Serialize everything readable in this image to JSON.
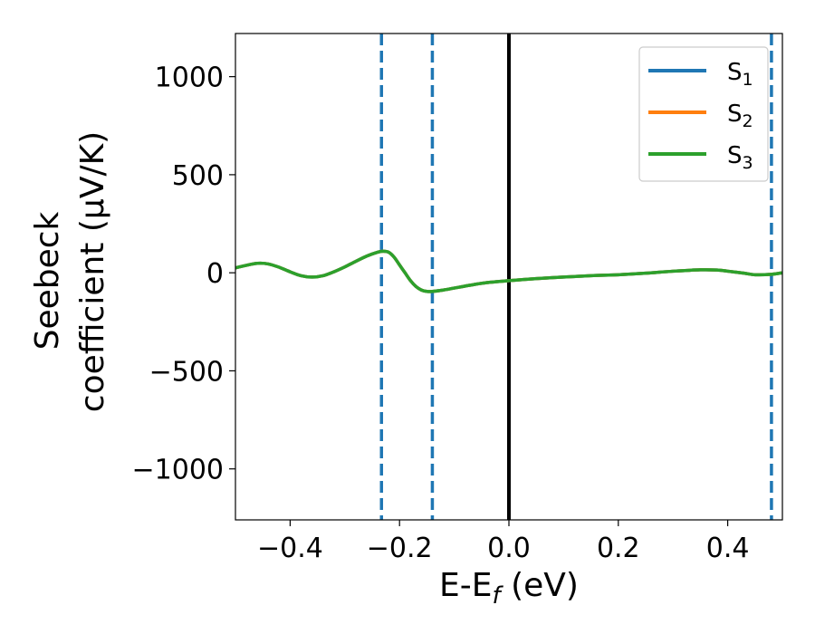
{
  "chart_data": {
    "type": "line",
    "xlabel": "E-E",
    "xlabel_sub": "f",
    "xlabel_unit": " (eV)",
    "ylabel_line1": "Seebeck",
    "ylabel_line2": "coefficient  (μV/K)",
    "xlim": [
      -0.5,
      0.5
    ],
    "ylim": [
      -1260,
      1220
    ],
    "xticks": [
      -0.4,
      -0.2,
      0.0,
      0.2,
      0.4
    ],
    "xtick_labels": [
      "−0.4",
      "−0.2",
      "0.0",
      "0.2",
      "0.4"
    ],
    "yticks": [
      1000,
      500,
      0,
      -500,
      -1000
    ],
    "ytick_labels": [
      "1000",
      "500",
      "0",
      "−500",
      "−1000"
    ],
    "grid": false,
    "legend_position": "top-right",
    "series": [
      {
        "name": "S",
        "name_sub": "1",
        "color": "#1f77b4",
        "x": [
          -0.5,
          -0.48,
          -0.46,
          -0.44,
          -0.42,
          -0.4,
          -0.38,
          -0.36,
          -0.34,
          -0.32,
          -0.3,
          -0.28,
          -0.26,
          -0.24,
          -0.23,
          -0.22,
          -0.21,
          -0.2,
          -0.19,
          -0.18,
          -0.17,
          -0.16,
          -0.15,
          -0.14,
          -0.12,
          -0.1,
          -0.08,
          -0.06,
          -0.04,
          -0.02,
          0.0,
          0.05,
          0.1,
          0.15,
          0.2,
          0.25,
          0.3,
          0.35,
          0.38,
          0.4,
          0.43,
          0.45,
          0.48,
          0.5
        ],
        "y": [
          25,
          38,
          48,
          45,
          28,
          5,
          -15,
          -22,
          -15,
          5,
          30,
          58,
          85,
          105,
          110,
          105,
          80,
          40,
          0,
          -40,
          -70,
          -88,
          -95,
          -95,
          -88,
          -78,
          -68,
          -58,
          -50,
          -45,
          -40,
          -30,
          -22,
          -15,
          -10,
          -2,
          8,
          15,
          14,
          8,
          -2,
          -10,
          -8,
          0
        ]
      },
      {
        "name": "S",
        "name_sub": "2",
        "color": "#ff7f0e",
        "x": [
          -0.5,
          -0.48,
          -0.46,
          -0.44,
          -0.42,
          -0.4,
          -0.38,
          -0.36,
          -0.34,
          -0.32,
          -0.3,
          -0.28,
          -0.26,
          -0.24,
          -0.23,
          -0.22,
          -0.21,
          -0.2,
          -0.19,
          -0.18,
          -0.17,
          -0.16,
          -0.15,
          -0.14,
          -0.12,
          -0.1,
          -0.08,
          -0.06,
          -0.04,
          -0.02,
          0.0,
          0.05,
          0.1,
          0.15,
          0.2,
          0.25,
          0.3,
          0.35,
          0.38,
          0.4,
          0.43,
          0.45,
          0.48,
          0.5
        ],
        "y": [
          25,
          38,
          48,
          45,
          28,
          5,
          -15,
          -22,
          -15,
          5,
          30,
          58,
          85,
          105,
          110,
          105,
          80,
          40,
          0,
          -40,
          -70,
          -88,
          -95,
          -95,
          -88,
          -78,
          -68,
          -58,
          -50,
          -45,
          -40,
          -30,
          -22,
          -15,
          -10,
          -2,
          8,
          15,
          14,
          8,
          -2,
          -10,
          -8,
          0
        ]
      },
      {
        "name": "S",
        "name_sub": "3",
        "color": "#2ca02c",
        "x": [
          -0.5,
          -0.48,
          -0.46,
          -0.44,
          -0.42,
          -0.4,
          -0.38,
          -0.36,
          -0.34,
          -0.32,
          -0.3,
          -0.28,
          -0.26,
          -0.24,
          -0.23,
          -0.22,
          -0.21,
          -0.2,
          -0.19,
          -0.18,
          -0.17,
          -0.16,
          -0.15,
          -0.14,
          -0.12,
          -0.1,
          -0.08,
          -0.06,
          -0.04,
          -0.02,
          0.0,
          0.05,
          0.1,
          0.15,
          0.2,
          0.25,
          0.3,
          0.35,
          0.38,
          0.4,
          0.43,
          0.45,
          0.48,
          0.5
        ],
        "y": [
          25,
          38,
          48,
          45,
          28,
          5,
          -15,
          -22,
          -15,
          5,
          30,
          58,
          85,
          105,
          110,
          105,
          80,
          40,
          0,
          -40,
          -70,
          -88,
          -95,
          -95,
          -88,
          -78,
          -68,
          -58,
          -50,
          -45,
          -40,
          -30,
          -22,
          -15,
          -10,
          -2,
          8,
          15,
          14,
          8,
          -2,
          -10,
          -8,
          0
        ]
      }
    ],
    "vlines": [
      {
        "x": -0.233,
        "color": "#1f77b4",
        "style": "dashed"
      },
      {
        "x": -0.14,
        "color": "#1f77b4",
        "style": "dashed"
      },
      {
        "x": 0.0,
        "color": "#000000",
        "style": "solid"
      },
      {
        "x": 0.48,
        "color": "#1f77b4",
        "style": "dashed"
      }
    ]
  }
}
